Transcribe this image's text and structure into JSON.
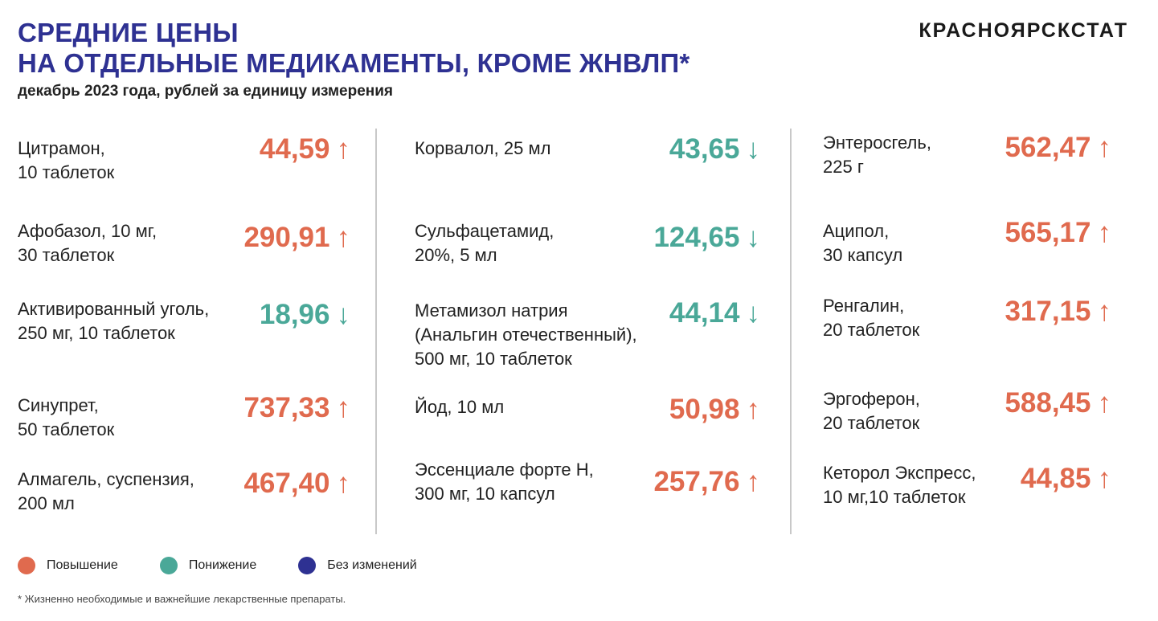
{
  "header": {
    "title_line1": "СРЕДНИЕ ЦЕНЫ",
    "title_line2": "НА ОТДЕЛЬНЫЕ МЕДИКАМЕНТЫ, КРОМЕ ЖНВЛП*",
    "subtitle": "декабрь 2023 года, рублей за единицу измерения",
    "brand": "КРАСНОЯРСКСТАТ"
  },
  "colors": {
    "increase": "#e06a4e",
    "decrease": "#4aa898",
    "no_change": "#2e3192",
    "title": "#2e3192"
  },
  "columns": [
    {
      "items": [
        {
          "name_lines": [
            "Цитрамон,",
            "10 таблеток"
          ],
          "price": "44,59",
          "arrow": "↑",
          "trend": "up"
        },
        {
          "name_lines": [
            "Афобазол, 10 мг,",
            "30 таблеток"
          ],
          "price": "290,91",
          "arrow": "↑",
          "trend": "up"
        },
        {
          "name_lines": [
            "Активированный уголь,",
            "250 мг, 10 таблеток"
          ],
          "price": "18,96",
          "arrow": "↓",
          "trend": "down"
        },
        {
          "name_lines": [
            "Синупрет,",
            "50 таблеток"
          ],
          "price": "737,33",
          "arrow": "↑",
          "trend": "up"
        },
        {
          "name_lines": [
            "Алмагель, суспензия,",
            "200 мл"
          ],
          "price": "467,40",
          "arrow": "↑",
          "trend": "up"
        }
      ]
    },
    {
      "items": [
        {
          "name_lines": [
            "Корвалол, 25 мл"
          ],
          "price": "43,65",
          "arrow": "↓",
          "trend": "down"
        },
        {
          "name_lines": [
            "Сульфацетамид,",
            "20%, 5 мл"
          ],
          "price": "124,65",
          "arrow": "↓",
          "trend": "down"
        },
        {
          "name_lines": [
            "Метамизол натрия",
            "(Анальгин отечественный),",
            "500 мг, 10 таблеток"
          ],
          "price": "44,14",
          "arrow": "↓",
          "trend": "down"
        },
        {
          "name_lines": [
            "Йод, 10 мл"
          ],
          "price": "50,98",
          "arrow": "↑",
          "trend": "up"
        },
        {
          "name_lines": [
            "Эссенциале форте Н,",
            "300 мг, 10 капсул"
          ],
          "price": "257,76",
          "arrow": "↑",
          "trend": "up"
        }
      ]
    },
    {
      "items": [
        {
          "name_lines": [
            "Энтеросгель,",
            "225 г"
          ],
          "price": "562,47",
          "arrow": "↑",
          "trend": "up"
        },
        {
          "name_lines": [
            "Аципол,",
            "30 капсул"
          ],
          "price": "565,17",
          "arrow": "↑",
          "trend": "up"
        },
        {
          "name_lines": [
            "Ренгалин,",
            "20 таблеток"
          ],
          "price": "317,15",
          "arrow": "↑",
          "trend": "up"
        },
        {
          "name_lines": [
            "Эргоферон,",
            "20 таблеток"
          ],
          "price": "588,45",
          "arrow": "↑",
          "trend": "up"
        },
        {
          "name_lines": [
            "Кеторол Экспресс,",
            "10 мг,10 таблеток"
          ],
          "price": "44,85",
          "arrow": "↑",
          "trend": "up"
        }
      ]
    }
  ],
  "legend": {
    "increase": "Повышение",
    "decrease": "Понижение",
    "no_change": "Без изменений"
  },
  "footnote": "* Жизненно необходимые и важнейшие лекарственные препараты."
}
